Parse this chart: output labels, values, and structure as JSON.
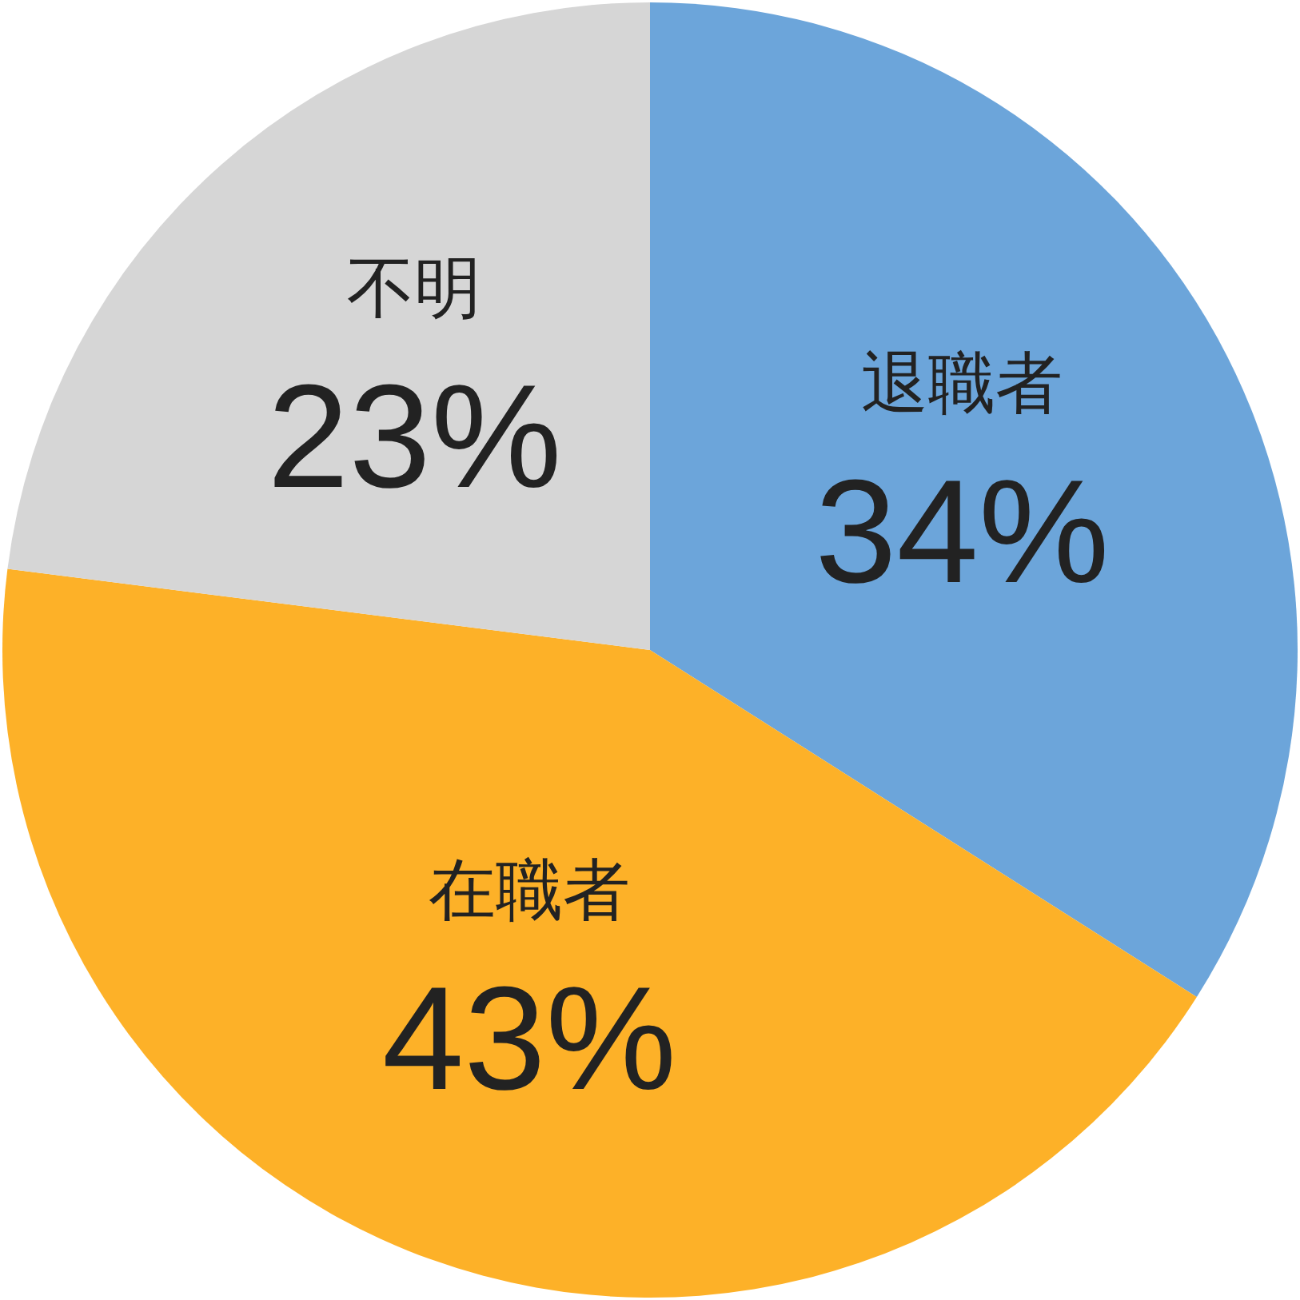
{
  "chart_data": {
    "type": "pie",
    "categories": [
      "退職者",
      "在職者",
      "不明"
    ],
    "values": [
      34,
      43,
      23
    ],
    "colors": [
      "#6ca5da",
      "#fdb128",
      "#d6d6d6"
    ],
    "value_labels": [
      "34%",
      "43%",
      "23%"
    ],
    "legend": false
  }
}
